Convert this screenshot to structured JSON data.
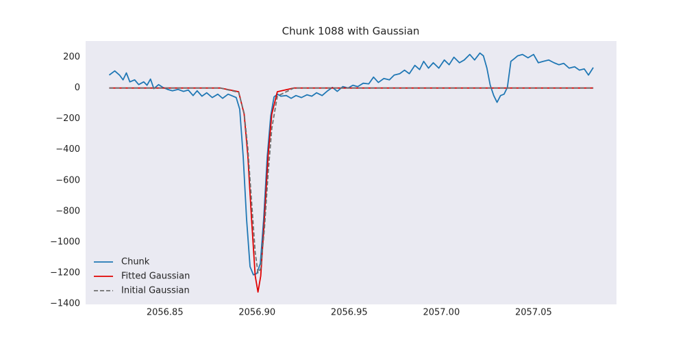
{
  "chart_data": {
    "type": "line",
    "title": "Chunk 1088 with Gaussian",
    "xlim": [
      2056.807,
      2057.095
    ],
    "ylim": [
      -1405,
      305
    ],
    "xticks": [
      {
        "value": 2056.85,
        "label": "2056.85"
      },
      {
        "value": 2056.9,
        "label": "2056.90"
      },
      {
        "value": 2056.95,
        "label": "2056.95"
      },
      {
        "value": 2057.0,
        "label": "2057.00"
      },
      {
        "value": 2057.05,
        "label": "2057.05"
      }
    ],
    "yticks": [
      200,
      0,
      {
        "value": -200,
        "label": "−200"
      },
      {
        "value": -400,
        "label": "−400"
      },
      {
        "value": -600,
        "label": "−600"
      },
      {
        "value": -800,
        "label": "−800"
      },
      {
        "value": -1000,
        "label": "−1000"
      },
      {
        "value": -1200,
        "label": "−1200"
      },
      {
        "value": -1400,
        "label": "−1400"
      }
    ],
    "grid": false,
    "legend": "lower left",
    "series": [
      {
        "name": "Chunk",
        "color": "#1f77b4",
        "linestyle": "solid",
        "x": [
          2056.8198,
          2056.8228,
          2056.8254,
          2056.8273,
          2056.8291,
          2056.831,
          2056.8336,
          2056.8358,
          2056.8385,
          2056.8403,
          2056.8422,
          2056.844,
          2056.8466,
          2056.8489,
          2056.8515,
          2056.8541,
          2056.8571,
          2056.8601,
          2056.8627,
          2056.8653,
          2056.8675,
          2056.8701,
          2056.8727,
          2056.8757,
          2056.8787,
          2056.8813,
          2056.8843,
          2056.8869,
          2056.8887,
          2056.8906,
          2056.8925,
          2056.8943,
          2056.8962,
          2056.898,
          2056.8999,
          2056.9018,
          2056.9036,
          2056.9055,
          2056.9074,
          2056.9092,
          2056.9111,
          2056.9129,
          2056.9159,
          2056.9185,
          2056.9211,
          2056.9241,
          2056.9271,
          2056.9297,
          2056.9323,
          2056.9353,
          2056.9383,
          2056.9409,
          2056.9435,
          2056.9465,
          2056.9494,
          2056.952,
          2056.9546,
          2056.9576,
          2056.9606,
          2056.9632,
          2056.9658,
          2056.9688,
          2056.9718,
          2056.9744,
          2056.9774,
          2056.98,
          2056.9826,
          2056.9856,
          2056.9882,
          2056.9904,
          2056.993,
          2056.9956,
          2056.9986,
          2057.0016,
          2057.0042,
          2057.0068,
          2057.0098,
          2057.0124,
          2057.0154,
          2057.018,
          2057.0209,
          2057.0228,
          2057.0247,
          2057.0265,
          2057.0284,
          2057.0302,
          2057.0321,
          2057.034,
          2057.0358,
          2057.0377,
          2057.0396,
          2057.0414,
          2057.044,
          2057.047,
          2057.05,
          2057.0526,
          2057.0552,
          2057.0582,
          2057.0611,
          2057.0638,
          2057.0664,
          2057.0693,
          2057.0723,
          2057.0749,
          2057.0775,
          2057.0798,
          2057.0824
        ],
        "values": [
          84,
          111,
          84,
          53,
          98,
          40,
          53,
          22,
          40,
          18,
          58,
          -4,
          22,
          4,
          -9,
          -18,
          -9,
          -22,
          -13,
          -49,
          -18,
          -53,
          -31,
          -62,
          -40,
          -67,
          -40,
          -53,
          -62,
          -138,
          -449,
          -849,
          -1160,
          -1213,
          -1204,
          -1138,
          -849,
          -449,
          -182,
          -58,
          -40,
          -53,
          -49,
          -67,
          -49,
          -62,
          -44,
          -53,
          -31,
          -49,
          -18,
          4,
          -22,
          9,
          0,
          18,
          9,
          31,
          27,
          71,
          36,
          62,
          53,
          84,
          93,
          116,
          93,
          147,
          120,
          173,
          129,
          164,
          129,
          182,
          151,
          200,
          164,
          182,
          218,
          182,
          227,
          209,
          129,
          18,
          -49,
          -93,
          -49,
          -40,
          4,
          173,
          191,
          209,
          218,
          196,
          218,
          164,
          173,
          182,
          164,
          151,
          160,
          129,
          138,
          116,
          124,
          84,
          133
        ]
      },
      {
        "name": "Fitted Gaussian",
        "color": "#e00000",
        "linestyle": "solid",
        "x": [
          2056.8198,
          2056.88,
          2056.89,
          2056.893,
          2056.895,
          2056.897,
          2056.899,
          2056.9005,
          2056.902,
          2056.904,
          2056.906,
          2056.908,
          2056.911,
          2056.92,
          2057.0824
        ],
        "values": [
          0,
          0,
          -24,
          -170,
          -439,
          -848,
          -1220,
          -1325,
          -1220,
          -848,
          -439,
          -170,
          -24,
          0,
          0
        ]
      },
      {
        "name": "Initial Gaussian",
        "color": "#6e6e6e",
        "linestyle": "dashed",
        "x": [
          2056.8198,
          2056.88,
          2056.89,
          2056.893,
          2056.895,
          2056.897,
          2056.899,
          2056.9005,
          2056.902,
          2056.904,
          2056.906,
          2056.908,
          2056.911,
          2056.92,
          2057.0824
        ],
        "values": [
          0,
          0,
          -28,
          -164,
          -393,
          -734,
          -1068,
          -1200,
          -1172,
          -913,
          -554,
          -262,
          -53,
          0,
          0
        ]
      }
    ]
  }
}
